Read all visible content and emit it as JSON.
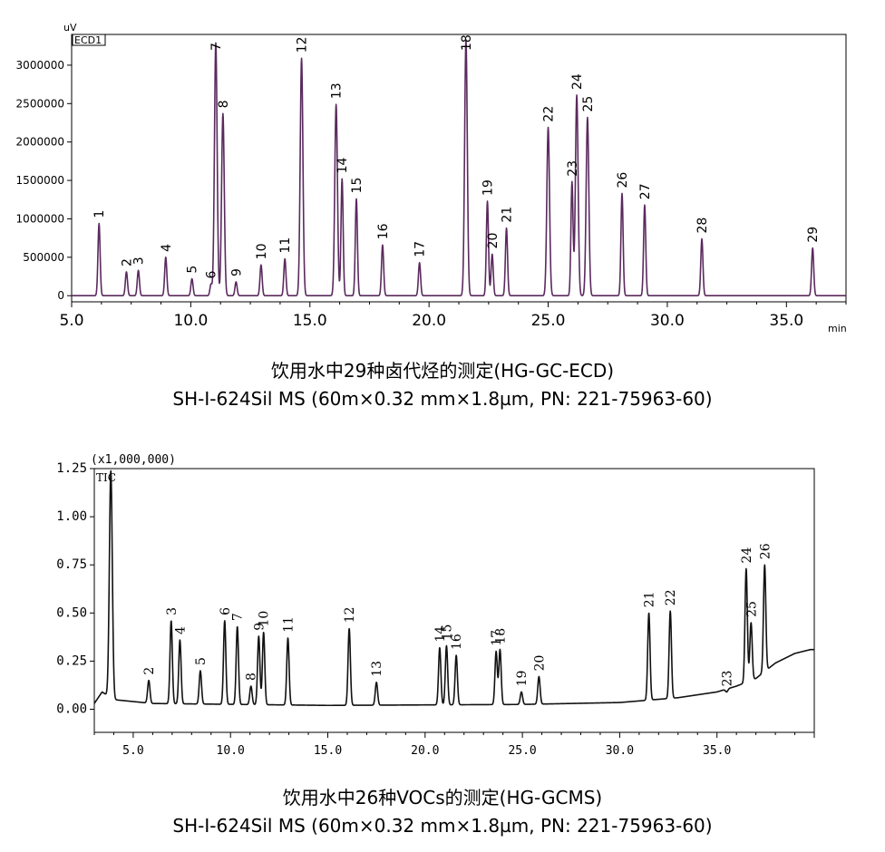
{
  "captions": {
    "top": [
      "饮用水中29种卤代烃的测定(HG-GC-ECD)",
      "SH-I-624Sil MS (60m×0.32 mm×1.8µm, PN: 221-75963-60)"
    ],
    "bottom": [
      "饮用水中26种VOCs的测定(HG-GCMS)",
      "SH-I-624Sil MS (60m×0.32 mm×1.8µm, PN: 221-75963-60)"
    ]
  },
  "chart_data": [
    {
      "type": "line",
      "title": "",
      "legend": "ECD1",
      "ylabel": "uV",
      "xunit": "min",
      "xlim": [
        5.0,
        37.5
      ],
      "ylim": [
        -80000,
        3400000
      ],
      "xticks": [
        5.0,
        10.0,
        15.0,
        20.0,
        25.0,
        30.0,
        35.0
      ],
      "xtick_labels": [
        "5.0",
        "10.0",
        "15.0",
        "20.0",
        "25.0",
        "30.0",
        "35.0"
      ],
      "yticks": [
        0,
        500000,
        1000000,
        1500000,
        2000000,
        2500000,
        3000000
      ],
      "ytick_labels": [
        "0",
        "500000",
        "1000000",
        "1500000",
        "2000000",
        "2500000",
        "3000000"
      ],
      "line_color": "#5a2a5e",
      "baseline": 0,
      "peaks": [
        {
          "label": "1",
          "x": 6.15,
          "y": 940000
        },
        {
          "label": "2",
          "x": 7.3,
          "y": 310000
        },
        {
          "label": "3",
          "x": 7.8,
          "y": 330000
        },
        {
          "label": "4",
          "x": 8.95,
          "y": 500000
        },
        {
          "label": "5",
          "x": 10.05,
          "y": 220000
        },
        {
          "label": "6",
          "x": 10.85,
          "y": 150000
        },
        {
          "label": "7",
          "x": 11.05,
          "y": 3290000
        },
        {
          "label": "8",
          "x": 11.35,
          "y": 2370000
        },
        {
          "label": "9",
          "x": 11.9,
          "y": 180000
        },
        {
          "label": "10",
          "x": 12.95,
          "y": 400000
        },
        {
          "label": "11",
          "x": 13.95,
          "y": 480000
        },
        {
          "label": "12",
          "x": 14.65,
          "y": 3090000
        },
        {
          "label": "13",
          "x": 16.1,
          "y": 2490000
        },
        {
          "label": "14",
          "x": 16.35,
          "y": 1520000
        },
        {
          "label": "15",
          "x": 16.95,
          "y": 1260000
        },
        {
          "label": "16",
          "x": 18.05,
          "y": 660000
        },
        {
          "label": "17",
          "x": 19.6,
          "y": 430000
        },
        {
          "label": "18",
          "x": 21.55,
          "y": 3330000
        },
        {
          "label": "19",
          "x": 22.45,
          "y": 1230000
        },
        {
          "label": "20",
          "x": 22.65,
          "y": 540000
        },
        {
          "label": "21",
          "x": 23.25,
          "y": 880000
        },
        {
          "label": "22",
          "x": 25.0,
          "y": 2190000
        },
        {
          "label": "23",
          "x": 26.0,
          "y": 1480000
        },
        {
          "label": "24",
          "x": 26.2,
          "y": 2610000
        },
        {
          "label": "25",
          "x": 26.65,
          "y": 2320000
        },
        {
          "label": "26",
          "x": 28.1,
          "y": 1330000
        },
        {
          "label": "27",
          "x": 29.05,
          "y": 1180000
        },
        {
          "label": "28",
          "x": 31.45,
          "y": 740000
        },
        {
          "label": "29",
          "x": 36.1,
          "y": 620000
        }
      ]
    },
    {
      "type": "line",
      "title": "",
      "legend": "TIC",
      "yscale_label": "(x1,000,000)",
      "xlim": [
        3.0,
        40.0
      ],
      "ylim": [
        -0.12,
        1.25
      ],
      "xticks": [
        5.0,
        10.0,
        15.0,
        20.0,
        25.0,
        30.0,
        35.0
      ],
      "xtick_labels": [
        "5.0",
        "10.0",
        "15.0",
        "20.0",
        "25.0",
        "30.0",
        "35.0"
      ],
      "yticks": [
        0.0,
        0.25,
        0.5,
        0.75,
        1.0,
        1.25
      ],
      "ytick_labels": [
        "0.00",
        "0.25",
        "0.50",
        "0.75",
        "1.00",
        "1.25"
      ],
      "line_color": "#111111",
      "baseline": [
        [
          3.0,
          0.03
        ],
        [
          3.4,
          0.09
        ],
        [
          4.0,
          0.05
        ],
        [
          6.0,
          0.03
        ],
        [
          15.0,
          0.02
        ],
        [
          25.0,
          0.025
        ],
        [
          30.0,
          0.035
        ],
        [
          33.0,
          0.06
        ],
        [
          35.0,
          0.09
        ],
        [
          36.0,
          0.12
        ],
        [
          37.0,
          0.16
        ],
        [
          38.0,
          0.24
        ],
        [
          39.0,
          0.29
        ],
        [
          39.8,
          0.31
        ]
      ],
      "peaks": [
        {
          "label": "",
          "x": 3.85,
          "y": 1.24
        },
        {
          "label": "2",
          "x": 5.8,
          "y": 0.15
        },
        {
          "label": "3",
          "x": 6.95,
          "y": 0.46
        },
        {
          "label": "4",
          "x": 7.4,
          "y": 0.36
        },
        {
          "label": "5",
          "x": 8.45,
          "y": 0.2
        },
        {
          "label": "6",
          "x": 9.7,
          "y": 0.46
        },
        {
          "label": "7",
          "x": 10.35,
          "y": 0.43
        },
        {
          "label": "8",
          "x": 11.05,
          "y": 0.12
        },
        {
          "label": "9",
          "x": 11.45,
          "y": 0.38
        },
        {
          "label": "10",
          "x": 11.7,
          "y": 0.4
        },
        {
          "label": "11",
          "x": 12.95,
          "y": 0.37
        },
        {
          "label": "12",
          "x": 16.1,
          "y": 0.42
        },
        {
          "label": "13",
          "x": 17.5,
          "y": 0.14
        },
        {
          "label": "14",
          "x": 20.75,
          "y": 0.32
        },
        {
          "label": "15",
          "x": 21.1,
          "y": 0.33
        },
        {
          "label": "16",
          "x": 21.6,
          "y": 0.28
        },
        {
          "label": "17",
          "x": 23.65,
          "y": 0.3
        },
        {
          "label": "18",
          "x": 23.85,
          "y": 0.31
        },
        {
          "label": "19",
          "x": 24.95,
          "y": 0.09
        },
        {
          "label": "20",
          "x": 25.85,
          "y": 0.17
        },
        {
          "label": "21",
          "x": 31.5,
          "y": 0.5
        },
        {
          "label": "22",
          "x": 32.6,
          "y": 0.51
        },
        {
          "label": "23",
          "x": 35.5,
          "y": 0.09
        },
        {
          "label": "24",
          "x": 36.5,
          "y": 0.73
        },
        {
          "label": "25",
          "x": 36.75,
          "y": 0.45
        },
        {
          "label": "26",
          "x": 37.45,
          "y": 0.75
        }
      ]
    }
  ]
}
